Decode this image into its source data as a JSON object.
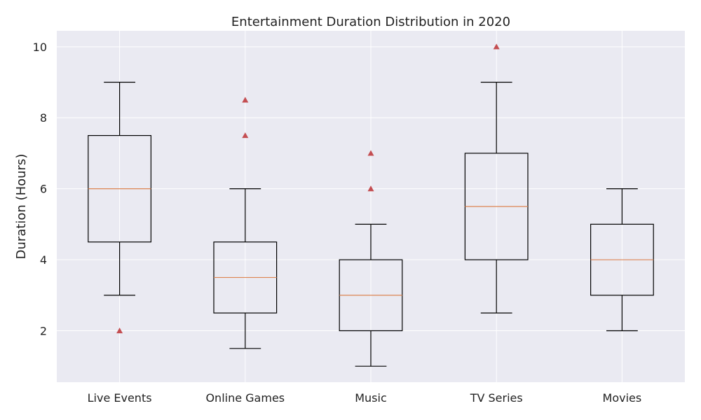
{
  "chart_data": {
    "type": "box",
    "title": "Entertainment Duration Distribution in 2020",
    "xlabel": "",
    "ylabel": "Duration (Hours)",
    "ylim": [
      0.55,
      10.45
    ],
    "yticks": [
      2,
      4,
      6,
      8,
      10
    ],
    "grid": true,
    "categories": [
      "Live Events",
      "Online Games",
      "Music",
      "TV Series",
      "Movies"
    ],
    "boxes": [
      {
        "category": "Live Events",
        "whisker_low": 3,
        "q1": 4.5,
        "median": 6,
        "q3": 7.5,
        "whisker_high": 9,
        "outliers": [
          2
        ]
      },
      {
        "category": "Online Games",
        "whisker_low": 1.5,
        "q1": 2.5,
        "median": 3.5,
        "q3": 4.5,
        "whisker_high": 6,
        "outliers": [
          7.5,
          8.5
        ]
      },
      {
        "category": "Music",
        "whisker_low": 1,
        "q1": 2,
        "median": 3,
        "q3": 4,
        "whisker_high": 5,
        "outliers": [
          6,
          7
        ]
      },
      {
        "category": "TV Series",
        "whisker_low": 2.5,
        "q1": 4,
        "median": 5.5,
        "q3": 7,
        "whisker_high": 9,
        "outliers": [
          10
        ]
      },
      {
        "category": "Movies",
        "whisker_low": 2,
        "q1": 3,
        "median": 4,
        "q3": 5,
        "whisker_high": 6,
        "outliers": []
      }
    ],
    "colors": {
      "background": "#eaeaf2",
      "grid": "#ffffff",
      "box": "#000000",
      "median": "#dd8452",
      "outlier": "#c44e52"
    }
  }
}
